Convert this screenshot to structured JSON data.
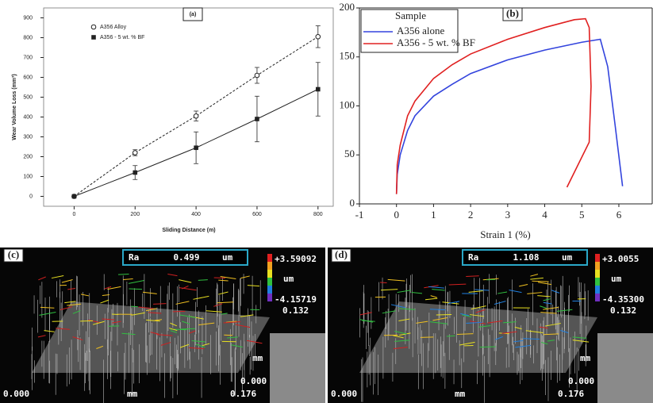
{
  "chart_data": [
    {
      "type": "line",
      "panel": "(a)",
      "x_label": "Sliding Distance (m)",
      "y_label": "Wear Volume Loss (mm³)",
      "x": [
        0,
        200,
        400,
        600,
        800
      ],
      "series": [
        {
          "name": "A356 Alloy",
          "color": "#222222",
          "dash": true,
          "marker": "open-circle",
          "values": [
            0,
            220,
            405,
            610,
            805
          ],
          "errors": [
            0,
            15,
            25,
            40,
            55
          ]
        },
        {
          "name": "A356 - 5 wt. % BF",
          "color": "#222222",
          "dash": false,
          "marker": "filled-square",
          "values": [
            0,
            120,
            245,
            390,
            540
          ],
          "errors": [
            0,
            35,
            80,
            115,
            135
          ]
        }
      ],
      "xlim": [
        -100,
        850
      ],
      "ylim": [
        -50,
        950
      ],
      "xticks": [
        0,
        200,
        400,
        600,
        800
      ],
      "yticks": [
        0,
        100,
        200,
        300,
        400,
        500,
        600,
        700,
        800,
        900
      ],
      "legend": "upper-left"
    },
    {
      "type": "line",
      "panel": "(b)",
      "x_label": "Strain 1 (%)",
      "legend_title": "Sample",
      "series": [
        {
          "name": "A356 alone",
          "color": "#3344dd",
          "x": [
            0,
            0.02,
            0.1,
            0.3,
            0.5,
            1,
            1.5,
            2,
            3,
            4,
            5,
            5.5,
            5.7,
            5.9,
            6.1
          ],
          "values": [
            10,
            30,
            50,
            75,
            90,
            110,
            122,
            133,
            147,
            157,
            165,
            168,
            140,
            80,
            18
          ]
        },
        {
          "name": "A356 - 5 wt. % BF",
          "color": "#e02020",
          "x": [
            0,
            0.02,
            0.1,
            0.3,
            0.5,
            1,
            1.5,
            2,
            3,
            4,
            4.8,
            5.1,
            5.2,
            5.25,
            5.2,
            4.6
          ],
          "values": [
            10,
            40,
            60,
            90,
            105,
            128,
            142,
            153,
            168,
            180,
            188,
            189,
            180,
            120,
            63,
            17
          ]
        }
      ],
      "xlim": [
        -1,
        6.9
      ],
      "ylim": [
        0,
        200
      ],
      "xticks": [
        -1,
        0,
        1,
        2,
        3,
        4,
        5,
        6
      ],
      "yticks": [
        0,
        50,
        100,
        150,
        200
      ],
      "legend": "upper-left"
    }
  ],
  "images": [
    {
      "label": "(c)",
      "ra": "Ra",
      "ra_value": "0.499",
      "ra_unit": "um",
      "max": "+3.59092",
      "unit": "um",
      "min": "-4.15719",
      "z": "0.132",
      "y_unit": "mm",
      "y_zero": "0.000",
      "x_start": "0.000",
      "x_unit": "mm",
      "x_end": "0.176"
    },
    {
      "label": "(d)",
      "ra": "Ra",
      "ra_value": "1.108",
      "ra_unit": "um",
      "max": "+3.0055",
      "unit": "um",
      "min": "-4.35300",
      "z": "0.132",
      "y_unit": "mm",
      "y_zero": "0.000",
      "x_start": "0.000",
      "x_unit": "mm",
      "x_end": "0.176"
    }
  ]
}
